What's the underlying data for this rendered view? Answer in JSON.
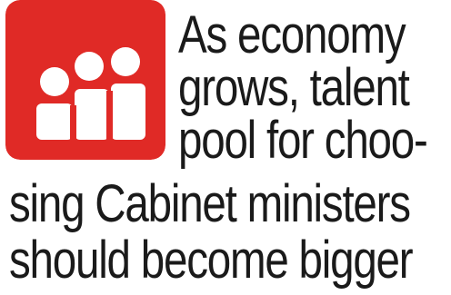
{
  "logo": {
    "icon": "three-people-icon",
    "background_color": "#e02a26",
    "foreground_color": "#ffffff"
  },
  "headline": {
    "lines": [
      "As economy",
      "grows, talent",
      "pool for choo-",
      "sing Cabinet ministers",
      "should become bigger"
    ]
  }
}
